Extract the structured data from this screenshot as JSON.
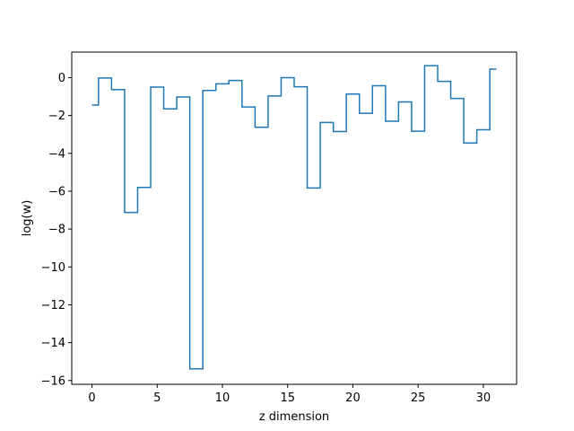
{
  "chart_data": {
    "type": "line",
    "drawstyle": "steps-mid",
    "title": "",
    "xlabel": "z dimension",
    "ylabel": "log(w)",
    "xlim": [
      -1.55,
      32.55
    ],
    "ylim": [
      -16.2,
      1.35
    ],
    "xticks": [
      0,
      5,
      10,
      15,
      20,
      25,
      30
    ],
    "yticks": [
      0,
      -2,
      -4,
      -6,
      -8,
      -10,
      -12,
      -14,
      -16
    ],
    "grid": false,
    "color": "#1f77b4",
    "series": [
      {
        "x": [
          0,
          1,
          2,
          3,
          4,
          5,
          6,
          7,
          8,
          9,
          10,
          11,
          12,
          13,
          14,
          15,
          16,
          17,
          18,
          19,
          20,
          21,
          22,
          23,
          24,
          25,
          26,
          27,
          28,
          29,
          30,
          31
        ],
        "values": [
          -1.45,
          -0.02,
          -0.63,
          -7.12,
          -5.8,
          -0.5,
          -1.65,
          -1.02,
          -15.38,
          -0.68,
          -0.33,
          -0.15,
          -1.55,
          -2.62,
          -0.97,
          0.0,
          -0.48,
          -5.83,
          -2.37,
          -2.85,
          -0.87,
          -1.88,
          -0.43,
          -2.3,
          -1.28,
          -2.83,
          0.63,
          -0.2,
          -1.1,
          -3.45,
          -2.75,
          0.45
        ]
      }
    ]
  }
}
